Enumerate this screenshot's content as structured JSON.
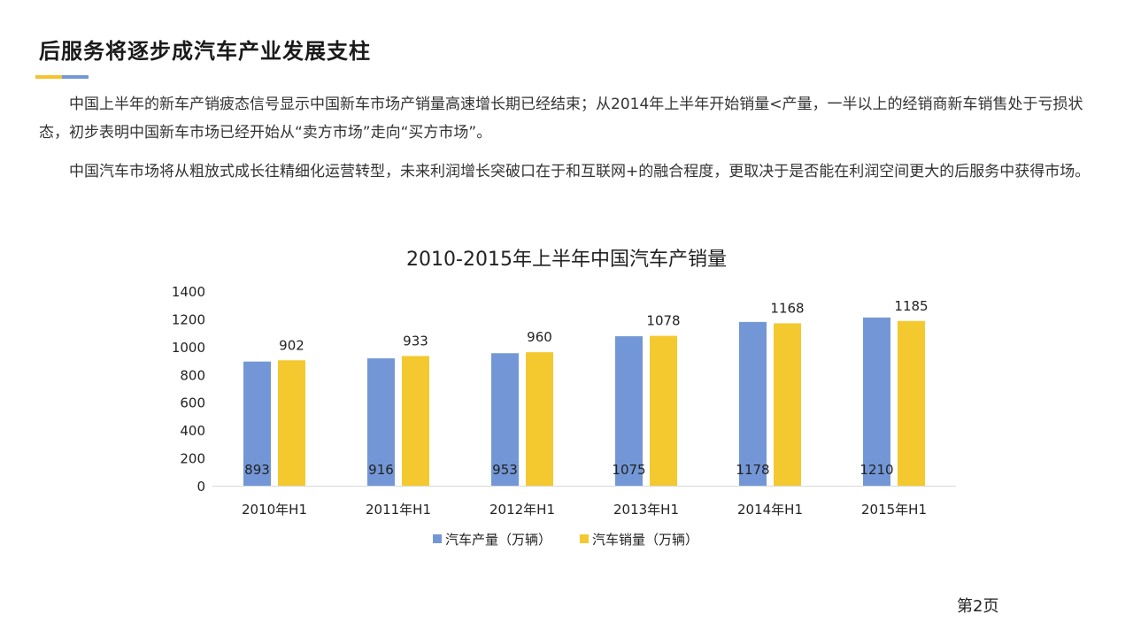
{
  "slide": {
    "title": "后服务将逐步成汽车产业发展支柱",
    "paragraphs": [
      "中国上半年的新车产销疲态信号显示中国新车市场产销量高速增长期已经结束；从2014年上半年开始销量<产量，一半以上的经销商新车销售处于亏损状态，初步表明中国新车市场已经开始从“卖方市场”走向“买方市场”。",
      "中国汽车市场将从粗放式成长往精细化运营转型，未来利润增长突破口在于和互联网+的融合程度，更取决于是否能在利润空间更大的后服务中获得市场。"
    ],
    "page_number": "第2页",
    "accent_colors": [
      "#F4C430",
      "#7397D6"
    ]
  },
  "chart_data": {
    "type": "bar",
    "title": "2010-2015年上半年中国汽车产销量",
    "categories": [
      "2010年H1",
      "2011年H1",
      "2012年H1",
      "2013年H1",
      "2014年H1",
      "2015年H1"
    ],
    "series": [
      {
        "name": "汽车产量（万辆）",
        "color": "#7397D6",
        "values": [
          893,
          916,
          953,
          1075,
          1178,
          1210
        ]
      },
      {
        "name": "汽车销量（万辆）",
        "color": "#F4C92F",
        "values": [
          902,
          933,
          960,
          1078,
          1168,
          1185
        ]
      }
    ],
    "ylim": [
      0,
      1400
    ],
    "yticks": [
      0,
      200,
      400,
      600,
      800,
      1000,
      1200,
      1400
    ],
    "grid": false,
    "legend": "bottom"
  }
}
